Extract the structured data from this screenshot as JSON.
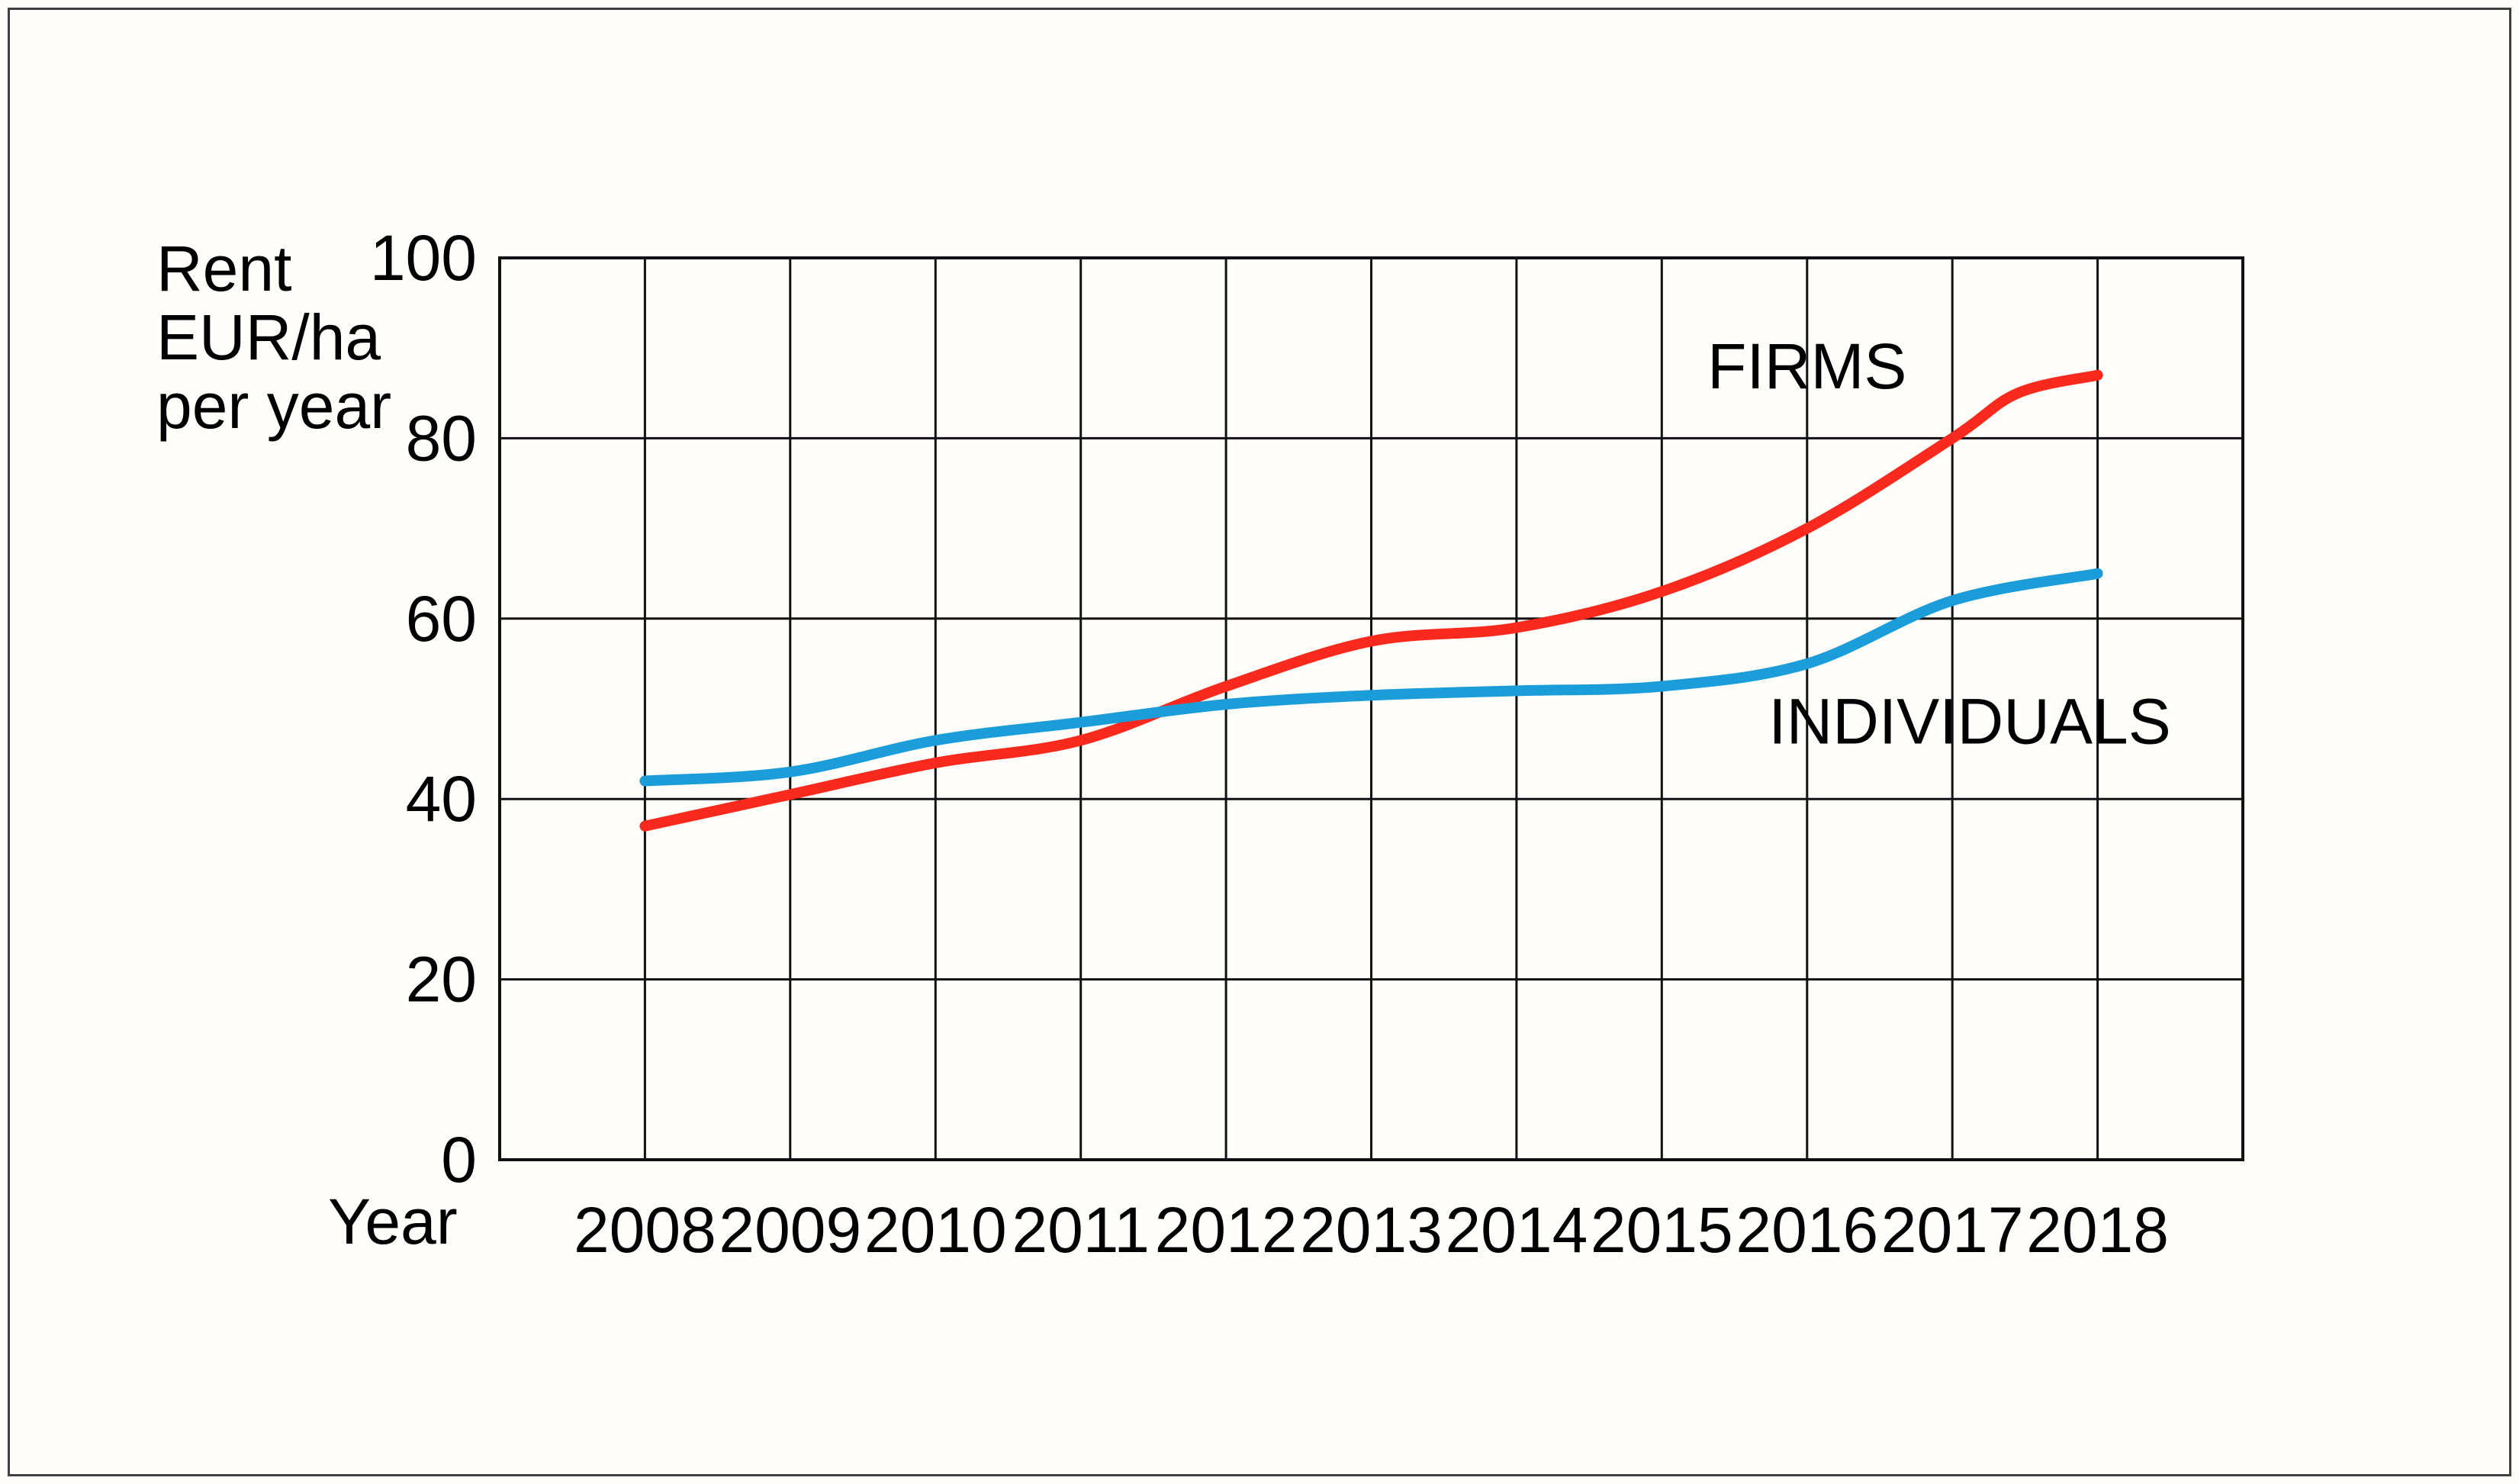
{
  "figure": {
    "background": "#fffefa",
    "frame_color": "#414141"
  },
  "chart_data": {
    "type": "line",
    "title": "",
    "xlabel": "Year",
    "ylabel": "Rent EUR/ha per year",
    "ylabel_lines": [
      "Rent",
      "EUR/ha",
      "per year"
    ],
    "xlim": [
      2007,
      2019
    ],
    "ylim": [
      0,
      100
    ],
    "yticks": [
      0,
      20,
      40,
      60,
      80,
      100
    ],
    "xticks": [
      2008,
      2009,
      2010,
      2011,
      2012,
      2013,
      2014,
      2015,
      2016,
      2017,
      2018
    ],
    "grid": true,
    "grid_color": "#111111",
    "legend_position": "inline-labels",
    "series": [
      {
        "name": "FIRMS",
        "color": "#f92a1d",
        "points": [
          [
            2008,
            37
          ],
          [
            2009,
            40.5
          ],
          [
            2010,
            44
          ],
          [
            2011,
            46.5
          ],
          [
            2012,
            52.5
          ],
          [
            2013,
            57.5
          ],
          [
            2014,
            59
          ],
          [
            2015,
            63
          ],
          [
            2016,
            70
          ],
          [
            2017,
            80
          ],
          [
            2017.45,
            85
          ],
          [
            2018,
            87
          ]
        ],
        "label": {
          "text": "FIRMS",
          "x": 2016.0,
          "y": 88
        }
      },
      {
        "name": "INDIVIDUALS",
        "color": "#1b9dd9",
        "points": [
          [
            2008,
            42
          ],
          [
            2009,
            43
          ],
          [
            2010,
            46.5
          ],
          [
            2011,
            48.5
          ],
          [
            2012,
            50.5
          ],
          [
            2013,
            51.5
          ],
          [
            2014,
            52
          ],
          [
            2015,
            52.5
          ],
          [
            2016,
            55
          ],
          [
            2017,
            62
          ],
          [
            2018,
            65
          ]
        ],
        "label": {
          "text": "INDIVIDUALS",
          "x": 2017.12,
          "y": 48.6
        }
      }
    ]
  }
}
